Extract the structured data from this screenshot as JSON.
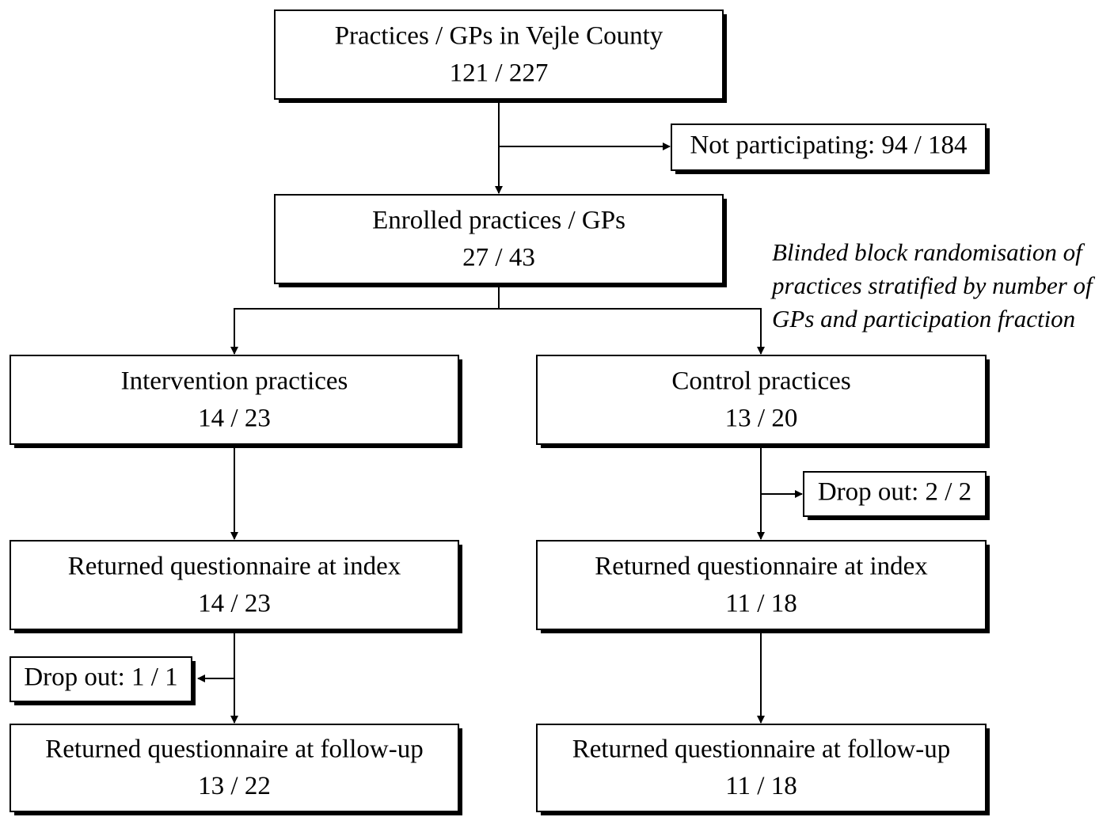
{
  "nodes": [
    {
      "lines": [
        "Practices / GPs in Vejle County",
        "121 / 227"
      ]
    },
    {
      "lines": [
        "Not participating: 94 / 184"
      ]
    },
    {
      "lines": [
        "Enrolled practices / GPs",
        "27 / 43"
      ]
    },
    {
      "lines": [
        "Intervention practices",
        "14 / 23"
      ]
    },
    {
      "lines": [
        "Control practices",
        "13 / 20"
      ]
    },
    {
      "lines": [
        "Drop out: 2 / 2"
      ]
    },
    {
      "lines": [
        "Returned questionnaire at index",
        "14 / 23"
      ]
    },
    {
      "lines": [
        "Returned questionnaire at index",
        "11 / 18"
      ]
    },
    {
      "lines": [
        "Drop out: 1 / 1"
      ]
    },
    {
      "lines": [
        "Returned questionnaire at follow-up",
        "13 / 22"
      ]
    },
    {
      "lines": [
        "Returned questionnaire at follow-up",
        "11 / 18"
      ]
    }
  ],
  "note": {
    "lines": [
      "Blinded block randomisation of",
      "practices stratified by number of",
      "GPs and participation fraction"
    ]
  }
}
